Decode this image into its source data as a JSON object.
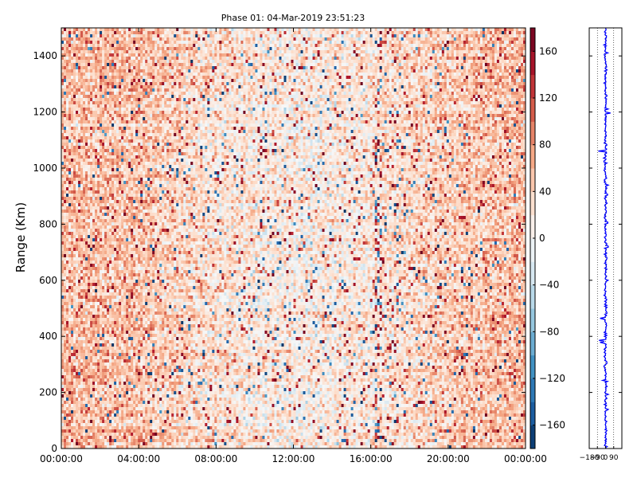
{
  "chart_data": [
    {
      "type": "heatmap",
      "title": "Phase 01: 04-Mar-2019 23:51:23",
      "xlabel": "",
      "ylabel": "Range (Km)",
      "x_tick_labels": [
        "00:00:00",
        "04:00:00",
        "08:00:00",
        "12:00:00",
        "16:00:00",
        "20:00:00",
        "00:00:00"
      ],
      "x_tick_hours": [
        0,
        4,
        8,
        12,
        16,
        20,
        24
      ],
      "xlim_hours": [
        0,
        24
      ],
      "ylim": [
        0,
        1500
      ],
      "y_ticks": [
        0,
        200,
        400,
        600,
        800,
        1000,
        1200,
        1400
      ],
      "colorbar": {
        "colormap": "RdBu_r",
        "range": [
          -180,
          180
        ],
        "ticks": [
          -160,
          -120,
          -80,
          -40,
          0,
          40,
          80,
          120,
          160
        ],
        "tick_labels": [
          "−160",
          "−120",
          "−80",
          "−40",
          "0",
          "40",
          "80",
          "120",
          "160"
        ]
      },
      "description_of_field": {
        "baseline_by_hour": [
          [
            0,
            55
          ],
          [
            4,
            50
          ],
          [
            6,
            38
          ],
          [
            8,
            25
          ],
          [
            10,
            18
          ],
          [
            12,
            12
          ],
          [
            14,
            15
          ],
          [
            16,
            20
          ],
          [
            18,
            30
          ],
          [
            20,
            42
          ],
          [
            24,
            55
          ]
        ],
        "noise_level": 30,
        "outlier_fraction": 0.06,
        "bright_column_hour": 16.4
      }
    },
    {
      "type": "line",
      "title": "",
      "xlabel": "",
      "ylabel": "",
      "xlim": [
        -180,
        180
      ],
      "ylim": [
        0,
        1500
      ],
      "x_ticks": [
        -180,
        -90,
        0,
        90
      ],
      "x_tick_labels": [
        "−180",
        "−90",
        "0",
        "90"
      ],
      "series": [
        {
          "color": "#0000ff",
          "baseline": 0,
          "spikes": [
            {
              "range": 1412,
              "value": 25
            },
            {
              "range": 1212,
              "value": 28
            },
            {
              "range": 1196,
              "value": 55
            },
            {
              "range": 1060,
              "value": -80
            },
            {
              "range": 1036,
              "value": -22
            },
            {
              "range": 940,
              "value": 30
            },
            {
              "range": 905,
              "value": 22
            },
            {
              "range": 805,
              "value": 25
            },
            {
              "range": 720,
              "value": 30
            },
            {
              "range": 600,
              "value": 28
            },
            {
              "range": 465,
              "value": -60
            },
            {
              "range": 385,
              "value": -72
            },
            {
              "range": 378,
              "value": -60
            },
            {
              "range": 244,
              "value": -32
            },
            {
              "range": 192,
              "value": 30
            },
            {
              "range": 140,
              "value": 30
            }
          ],
          "jitter": 8
        }
      ],
      "vlines": [
        -90,
        0,
        90
      ],
      "grid": "dotted vertical"
    }
  ]
}
